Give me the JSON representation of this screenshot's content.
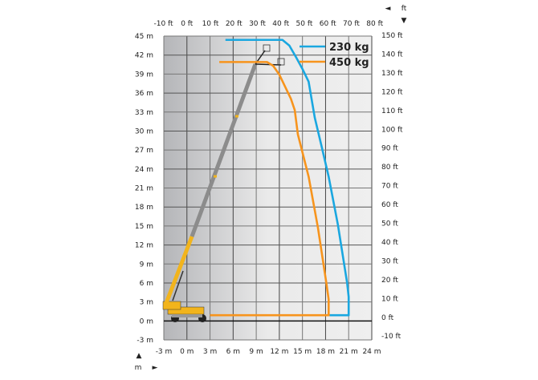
{
  "chart_data": {
    "type": "line",
    "title": "",
    "x_unit_primary": "m",
    "x_unit_secondary": "ft",
    "y_unit_primary": "m",
    "y_unit_secondary": "ft",
    "xlim": [
      -3,
      24
    ],
    "ylim": [
      -3,
      45
    ],
    "grid": true,
    "legend_placement": "top-right",
    "x_ticks_m": [
      "-3 m",
      "0 m",
      "3 m",
      "6 m",
      "9 m",
      "12 m",
      "15 m",
      "18 m",
      "21 m",
      "24 m"
    ],
    "x_ticks_ft": [
      "-10 ft",
      "0 ft",
      "10 ft",
      "20 ft",
      "30 ft",
      "40 ft",
      "50 ft",
      "60 ft",
      "70 ft",
      "80 ft"
    ],
    "y_ticks_m": [
      "45 m",
      "42 m",
      "39 m",
      "36 m",
      "33 m",
      "30 m",
      "27 m",
      "24 m",
      "21 m",
      "18 m",
      "15 m",
      "12 m",
      "9 m",
      "6 m",
      "3 m",
      "0 m",
      "-3 m"
    ],
    "y_ticks_ft": [
      "150 ft",
      "140 ft",
      "130 ft",
      "120 ft",
      "110 ft",
      "100 ft",
      "90 ft",
      "80 ft",
      "70 ft",
      "60 ft",
      "50 ft",
      "40 ft",
      "30 ft",
      "20 ft",
      "10 ft",
      "0 ft",
      "-10 ft"
    ],
    "axis_marks": {
      "ft_label": "ft",
      "m_label": "m",
      "arrow_left": "◄",
      "arrow_down": "▼",
      "arrow_up": "▲",
      "arrow_right": "►"
    },
    "series": [
      {
        "name": "230 kg",
        "color": "#1aa7e0",
        "points": [
          [
            5.0,
            44.4
          ],
          [
            12.4,
            44.4
          ],
          [
            13.3,
            43.5
          ],
          [
            14.2,
            41.6
          ],
          [
            15.0,
            39.8
          ],
          [
            15.8,
            37.8
          ],
          [
            16.6,
            32.1
          ],
          [
            17.5,
            27.5
          ],
          [
            18.4,
            22.8
          ],
          [
            19.6,
            15.2
          ],
          [
            20.8,
            6.0
          ],
          [
            21.0,
            3.8
          ],
          [
            21.0,
            0.9
          ],
          [
            18.5,
            0.9
          ]
        ]
      },
      {
        "name": "450 kg",
        "color": "#f7941d",
        "points": [
          [
            4.2,
            40.9
          ],
          [
            10.4,
            40.9
          ],
          [
            11.2,
            40.3
          ],
          [
            12.0,
            38.9
          ],
          [
            13.5,
            35.1
          ],
          [
            14.0,
            33.3
          ],
          [
            14.4,
            29.5
          ],
          [
            15.8,
            22.8
          ],
          [
            17.0,
            14.8
          ],
          [
            18.1,
            6.0
          ],
          [
            18.4,
            3.4
          ],
          [
            18.4,
            0.9
          ],
          [
            3.0,
            0.9
          ]
        ]
      }
    ]
  }
}
